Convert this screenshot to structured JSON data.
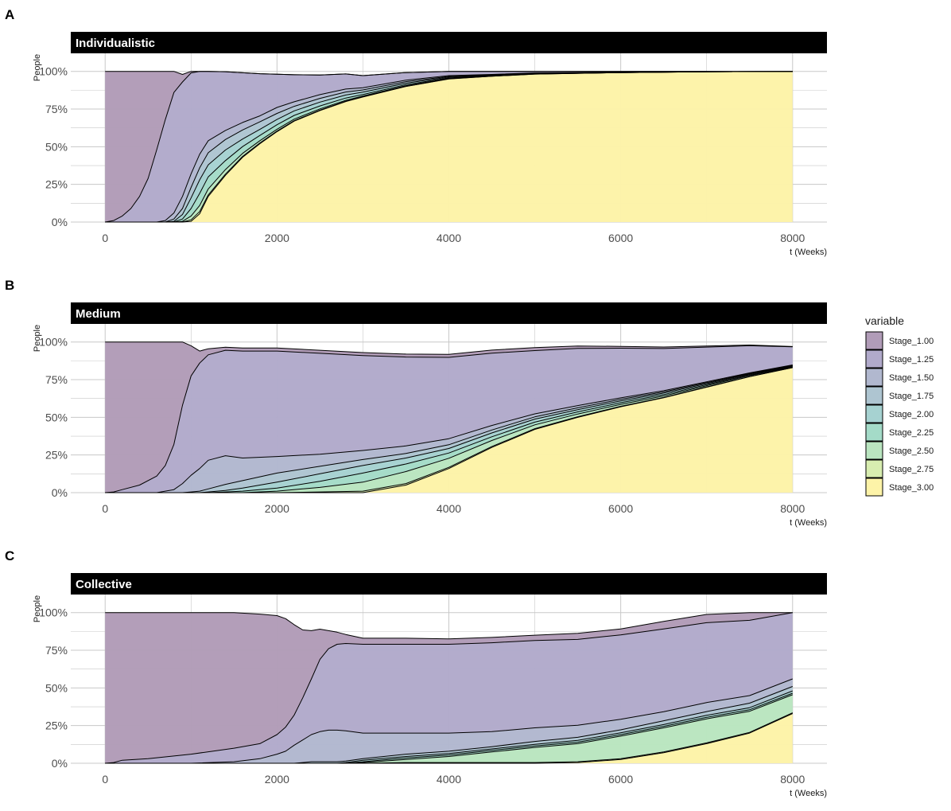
{
  "chart_data": [
    {
      "type": "area",
      "panel_tag": "A",
      "title": "Individualistic",
      "xlabel": "t (Weeks)",
      "ylabel": "People",
      "xlim": [
        -400,
        8400
      ],
      "ylim": [
        0,
        1.12
      ],
      "x_ticks": [
        0,
        2000,
        4000,
        6000,
        8000
      ],
      "x_tick_labels": [
        "0",
        "2000",
        "4000",
        "6000",
        "8000"
      ],
      "y_ticks": [
        0,
        0.25,
        0.5,
        0.75,
        1.0
      ],
      "y_tick_labels": [
        "0%",
        "25%",
        "50%",
        "75%",
        "100%"
      ],
      "grid": true,
      "x": [
        0,
        100,
        200,
        300,
        400,
        500,
        600,
        700,
        800,
        900,
        1000,
        1100,
        1200,
        1400,
        1600,
        1800,
        2000,
        2200,
        2500,
        2800,
        3000,
        3500,
        4000,
        4500,
        5000,
        6000,
        7000,
        8000
      ],
      "series": [
        {
          "name": "Stage_1.00",
          "values": [
            1.0,
            0.99,
            0.96,
            0.91,
            0.83,
            0.71,
            0.52,
            0.32,
            0.14,
            0.05,
            0.01,
            0.0,
            0,
            0,
            0,
            0,
            0,
            0,
            0,
            0,
            0,
            0,
            0,
            0,
            0,
            0,
            0,
            0
          ]
        },
        {
          "name": "Stage_1.25",
          "values": [
            0.0,
            0.01,
            0.04,
            0.09,
            0.17,
            0.29,
            0.48,
            0.67,
            0.8,
            0.76,
            0.67,
            0.55,
            0.46,
            0.39,
            0.33,
            0.28,
            0.22,
            0.18,
            0.13,
            0.1,
            0.08,
            0.05,
            0.03,
            0.02,
            0.01,
            0.005,
            0.002,
            0.0
          ]
        },
        {
          "name": "Stage_1.50",
          "values": [
            0,
            0,
            0,
            0,
            0,
            0,
            0,
            0.01,
            0.04,
            0.08,
            0.09,
            0.09,
            0.08,
            0.06,
            0.05,
            0.04,
            0.04,
            0.03,
            0.025,
            0.02,
            0.015,
            0.01,
            0.005,
            0.003,
            0.002,
            0.001,
            0,
            0
          ]
        },
        {
          "name": "Stage_1.75",
          "values": [
            0,
            0,
            0,
            0,
            0,
            0,
            0,
            0.0,
            0.015,
            0.04,
            0.07,
            0.08,
            0.08,
            0.07,
            0.06,
            0.05,
            0.04,
            0.03,
            0.025,
            0.02,
            0.015,
            0.01,
            0.005,
            0.003,
            0.002,
            0.001,
            0,
            0
          ]
        },
        {
          "name": "Stage_2.00",
          "values": [
            0,
            0,
            0,
            0,
            0,
            0,
            0,
            0,
            0.005,
            0.03,
            0.07,
            0.09,
            0.08,
            0.07,
            0.05,
            0.04,
            0.035,
            0.03,
            0.025,
            0.02,
            0.015,
            0.01,
            0.005,
            0.003,
            0.002,
            0.001,
            0,
            0
          ]
        },
        {
          "name": "Stage_2.25",
          "values": [
            0,
            0,
            0,
            0,
            0,
            0,
            0,
            0,
            0.0,
            0.015,
            0.05,
            0.08,
            0.08,
            0.06,
            0.045,
            0.035,
            0.03,
            0.025,
            0.02,
            0.015,
            0.01,
            0.007,
            0.004,
            0.002,
            0.001,
            0,
            0,
            0
          ]
        },
        {
          "name": "Stage_2.50",
          "values": [
            0,
            0,
            0,
            0,
            0,
            0,
            0,
            0,
            0,
            0.005,
            0.025,
            0.04,
            0.04,
            0.03,
            0.02,
            0.015,
            0.012,
            0.01,
            0.008,
            0.006,
            0.005,
            0.004,
            0.002,
            0.001,
            0.001,
            0,
            0,
            0
          ]
        },
        {
          "name": "Stage_2.75",
          "values": [
            0,
            0,
            0,
            0,
            0,
            0,
            0,
            0,
            0,
            0.0,
            0.01,
            0.015,
            0.01,
            0.008,
            0.006,
            0.005,
            0.004,
            0.003,
            0.003,
            0.002,
            0.002,
            0.001,
            0.001,
            0,
            0,
            0,
            0,
            0
          ]
        },
        {
          "name": "Stage_3.00",
          "values": [
            0,
            0,
            0,
            0,
            0,
            0,
            0,
            0,
            0,
            0.0,
            0.005,
            0.055,
            0.17,
            0.31,
            0.43,
            0.52,
            0.6,
            0.67,
            0.74,
            0.8,
            0.83,
            0.9,
            0.95,
            0.968,
            0.982,
            0.992,
            0.998,
            1.0
          ]
        }
      ]
    },
    {
      "type": "area",
      "panel_tag": "B",
      "title": "Medium",
      "xlabel": "t (Weeks)",
      "ylabel": "People",
      "xlim": [
        -400,
        8400
      ],
      "ylim": [
        0,
        1.12
      ],
      "x_ticks": [
        0,
        2000,
        4000,
        6000,
        8000
      ],
      "x_tick_labels": [
        "0",
        "2000",
        "4000",
        "6000",
        "8000"
      ],
      "y_ticks": [
        0,
        0.25,
        0.5,
        0.75,
        1.0
      ],
      "y_tick_labels": [
        "0%",
        "25%",
        "50%",
        "75%",
        "100%"
      ],
      "grid": true,
      "x": [
        0,
        100,
        200,
        400,
        600,
        700,
        800,
        900,
        1000,
        1100,
        1200,
        1400,
        1600,
        2000,
        2500,
        3000,
        3500,
        4000,
        4500,
        5000,
        5500,
        6000,
        6500,
        7000,
        7500,
        8000
      ],
      "series": [
        {
          "name": "Stage_1.00",
          "values": [
            1.0,
            0.995,
            0.98,
            0.95,
            0.89,
            0.82,
            0.68,
            0.42,
            0.2,
            0.08,
            0.04,
            0.02,
            0.02,
            0.02,
            0.02,
            0.02,
            0.02,
            0.02,
            0.02,
            0.02,
            0.015,
            0.012,
            0.01,
            0.007,
            0.005,
            0.002
          ]
        },
        {
          "name": "Stage_1.25",
          "values": [
            0.0,
            0.005,
            0.02,
            0.05,
            0.11,
            0.17,
            0.3,
            0.52,
            0.66,
            0.7,
            0.7,
            0.7,
            0.71,
            0.7,
            0.67,
            0.63,
            0.59,
            0.54,
            0.48,
            0.42,
            0.38,
            0.33,
            0.28,
            0.23,
            0.18,
            0.12
          ]
        },
        {
          "name": "Stage_1.50",
          "values": [
            0,
            0,
            0,
            0,
            0,
            0.01,
            0.02,
            0.06,
            0.11,
            0.15,
            0.19,
            0.19,
            0.15,
            0.11,
            0.08,
            0.06,
            0.05,
            0.04,
            0.03,
            0.02,
            0.015,
            0.01,
            0.008,
            0.006,
            0.004,
            0.003
          ]
        },
        {
          "name": "Stage_1.75",
          "values": [
            0,
            0,
            0,
            0,
            0,
            0,
            0,
            0,
            0.005,
            0.01,
            0.02,
            0.04,
            0.05,
            0.06,
            0.05,
            0.04,
            0.03,
            0.025,
            0.02,
            0.015,
            0.012,
            0.01,
            0.008,
            0.006,
            0.004,
            0.003
          ]
        },
        {
          "name": "Stage_2.00",
          "values": [
            0,
            0,
            0,
            0,
            0,
            0,
            0,
            0,
            0,
            0,
            0.005,
            0.01,
            0.02,
            0.04,
            0.05,
            0.05,
            0.04,
            0.03,
            0.025,
            0.02,
            0.015,
            0.012,
            0.01,
            0.007,
            0.005,
            0.004
          ]
        },
        {
          "name": "Stage_2.25",
          "values": [
            0,
            0,
            0,
            0,
            0,
            0,
            0,
            0,
            0,
            0,
            0,
            0.005,
            0.01,
            0.02,
            0.04,
            0.06,
            0.05,
            0.035,
            0.025,
            0.018,
            0.014,
            0.011,
            0.009,
            0.007,
            0.005,
            0.004
          ]
        },
        {
          "name": "Stage_2.50",
          "values": [
            0,
            0,
            0,
            0,
            0,
            0,
            0,
            0,
            0,
            0,
            0,
            0,
            0,
            0.01,
            0.03,
            0.06,
            0.08,
            0.06,
            0.04,
            0.025,
            0.018,
            0.013,
            0.01,
            0.008,
            0.006,
            0.004
          ]
        },
        {
          "name": "Stage_2.75",
          "values": [
            0,
            0,
            0,
            0,
            0,
            0,
            0,
            0,
            0,
            0,
            0,
            0,
            0,
            0,
            0.005,
            0.01,
            0.01,
            0.008,
            0.006,
            0.005,
            0.004,
            0.003,
            0.002,
            0.002,
            0.001,
            0.0
          ]
        },
        {
          "name": "Stage_3.00",
          "values": [
            0,
            0,
            0,
            0,
            0,
            0,
            0,
            0,
            0,
            0,
            0,
            0,
            0,
            0,
            0,
            0.0,
            0.05,
            0.16,
            0.3,
            0.42,
            0.5,
            0.57,
            0.63,
            0.7,
            0.77,
            0.83
          ]
        }
      ]
    },
    {
      "type": "area",
      "panel_tag": "C",
      "title": "Collective",
      "xlabel": "t (Weeks)",
      "ylabel": "People",
      "xlim": [
        -400,
        8400
      ],
      "ylim": [
        0,
        1.12
      ],
      "x_ticks": [
        0,
        2000,
        4000,
        6000,
        8000
      ],
      "x_tick_labels": [
        "0",
        "2000",
        "4000",
        "6000",
        "8000"
      ],
      "y_ticks": [
        0,
        0.25,
        0.5,
        0.75,
        1.0
      ],
      "y_tick_labels": [
        "0%",
        "25%",
        "50%",
        "75%",
        "100%"
      ],
      "grid": true,
      "x": [
        0,
        100,
        200,
        500,
        1000,
        1500,
        1800,
        2000,
        2100,
        2200,
        2300,
        2400,
        2500,
        2600,
        2700,
        2800,
        3000,
        3500,
        4000,
        4500,
        5000,
        5500,
        6000,
        6500,
        7000,
        7500,
        8000
      ],
      "series": [
        {
          "name": "Stage_1.00",
          "values": [
            1.0,
            0.995,
            0.98,
            0.97,
            0.94,
            0.9,
            0.86,
            0.79,
            0.72,
            0.6,
            0.45,
            0.32,
            0.2,
            0.12,
            0.08,
            0.06,
            0.04,
            0.04,
            0.035,
            0.035,
            0.035,
            0.04,
            0.04,
            0.05,
            0.055,
            0.065,
            0.08
          ]
        },
        {
          "name": "Stage_1.25",
          "values": [
            0.0,
            0.005,
            0.02,
            0.03,
            0.06,
            0.09,
            0.1,
            0.13,
            0.16,
            0.2,
            0.28,
            0.37,
            0.48,
            0.54,
            0.57,
            0.58,
            0.59,
            0.59,
            0.59,
            0.59,
            0.58,
            0.57,
            0.56,
            0.55,
            0.53,
            0.5,
            0.47
          ]
        },
        {
          "name": "Stage_1.50",
          "values": [
            0,
            0,
            0,
            0,
            0,
            0.01,
            0.03,
            0.06,
            0.08,
            0.12,
            0.15,
            0.18,
            0.2,
            0.21,
            0.21,
            0.2,
            0.17,
            0.14,
            0.12,
            0.1,
            0.09,
            0.08,
            0.07,
            0.06,
            0.06,
            0.05,
            0.05
          ]
        },
        {
          "name": "Stage_1.75",
          "values": [
            0,
            0,
            0,
            0,
            0,
            0,
            0,
            0,
            0,
            0,
            0.005,
            0.01,
            0.01,
            0.01,
            0.01,
            0.01,
            0.01,
            0.015,
            0.015,
            0.015,
            0.02,
            0.02,
            0.02,
            0.025,
            0.025,
            0.03,
            0.03
          ]
        },
        {
          "name": "Stage_2.00",
          "values": [
            0,
            0,
            0,
            0,
            0,
            0,
            0,
            0,
            0,
            0,
            0,
            0,
            0,
            0,
            0,
            0.005,
            0.01,
            0.01,
            0.01,
            0.01,
            0.01,
            0.012,
            0.012,
            0.012,
            0.013,
            0.014,
            0.015
          ]
        },
        {
          "name": "Stage_2.25",
          "values": [
            0,
            0,
            0,
            0,
            0,
            0,
            0,
            0,
            0,
            0,
            0,
            0,
            0,
            0,
            0,
            0,
            0.005,
            0.01,
            0.01,
            0.01,
            0.01,
            0.01,
            0.01,
            0.01,
            0.01,
            0.01,
            0.01
          ]
        },
        {
          "name": "Stage_2.50",
          "values": [
            0,
            0,
            0,
            0,
            0,
            0,
            0,
            0,
            0,
            0,
            0,
            0,
            0,
            0,
            0,
            0,
            0.005,
            0.02,
            0.04,
            0.07,
            0.1,
            0.12,
            0.15,
            0.16,
            0.16,
            0.14,
            0.12
          ]
        },
        {
          "name": "Stage_2.75",
          "values": [
            0,
            0,
            0,
            0,
            0,
            0,
            0,
            0,
            0,
            0,
            0,
            0,
            0,
            0,
            0,
            0,
            0,
            0.005,
            0.005,
            0.005,
            0.005,
            0.005,
            0.005,
            0.005,
            0.005,
            0.005,
            0.005
          ]
        },
        {
          "name": "Stage_3.00",
          "values": [
            0,
            0,
            0,
            0,
            0,
            0,
            0,
            0,
            0,
            0,
            0,
            0,
            0,
            0,
            0,
            0,
            0,
            0,
            0,
            0,
            0.0,
            0.005,
            0.025,
            0.07,
            0.13,
            0.2,
            0.33
          ]
        }
      ]
    }
  ],
  "legend": {
    "title": "variable",
    "placement": "right",
    "items": [
      {
        "label": "Stage_1.00",
        "color": "#B19CB8"
      },
      {
        "label": "Stage_1.25",
        "color": "#B1AACB"
      },
      {
        "label": "Stage_1.50",
        "color": "#B1B8CF"
      },
      {
        "label": "Stage_1.75",
        "color": "#AEC5D1"
      },
      {
        "label": "Stage_2.00",
        "color": "#A6D2D1"
      },
      {
        "label": "Stage_2.25",
        "color": "#A4DBC8"
      },
      {
        "label": "Stage_2.50",
        "color": "#BAE5C0"
      },
      {
        "label": "Stage_2.75",
        "color": "#D8EDB0"
      },
      {
        "label": "Stage_3.00",
        "color": "#FDF3A8"
      }
    ]
  },
  "colors": {
    "strip_background": "#000000",
    "strip_text": "#FFFFFF",
    "grid": "#C8C8C8",
    "series_outline": "#000000"
  }
}
